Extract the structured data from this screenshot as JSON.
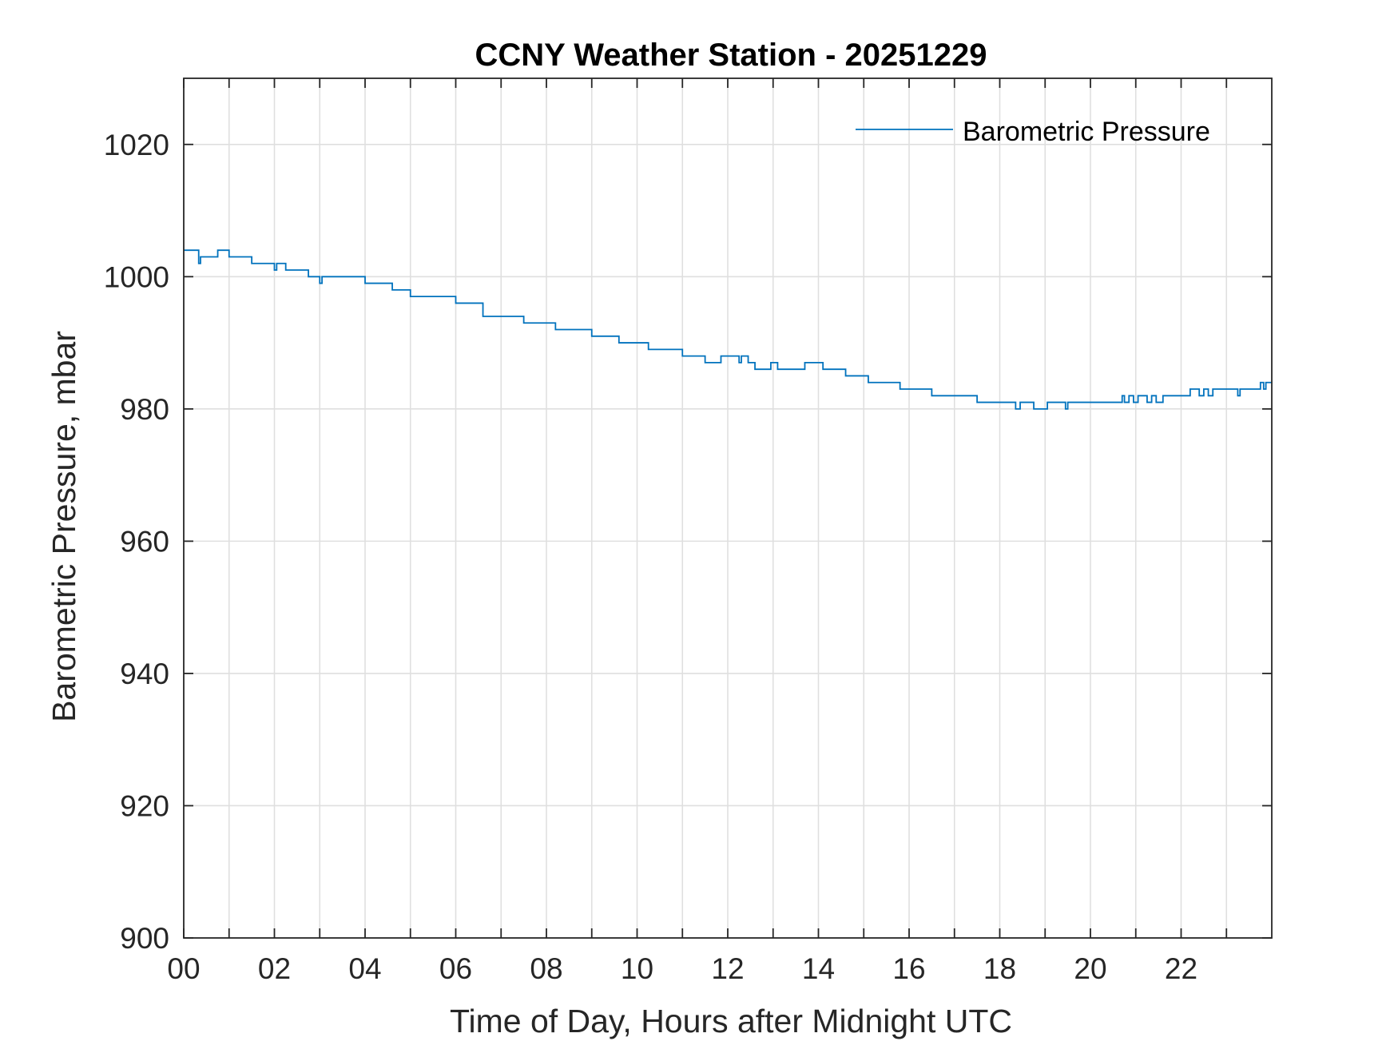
{
  "chart_data": {
    "type": "line",
    "title": "CCNY Weather Station - 20251229",
    "xlabel": "Time of Day, Hours after Midnight UTC",
    "ylabel": "Barometric Pressure, mbar",
    "xlim": [
      0,
      24
    ],
    "ylim": [
      900,
      1030
    ],
    "xticks": [
      0,
      2,
      4,
      6,
      8,
      10,
      12,
      14,
      16,
      18,
      20,
      22
    ],
    "xtick_labels": [
      "00",
      "02",
      "04",
      "06",
      "08",
      "10",
      "12",
      "14",
      "16",
      "18",
      "20",
      "22"
    ],
    "yticks": [
      900,
      920,
      940,
      960,
      980,
      1000,
      1020
    ],
    "ytick_labels": [
      "900",
      "920",
      "940",
      "960",
      "980",
      "1000",
      "1020"
    ],
    "grid": true,
    "legend_position": "top-right",
    "series": [
      {
        "name": "Barometric Pressure",
        "color": "#0072BD",
        "step": true,
        "x": [
          0,
          0.33,
          0.37,
          0.5,
          0.75,
          1.0,
          1.5,
          2.0,
          2.05,
          2.25,
          2.75,
          3.0,
          3.05,
          4.0,
          4.6,
          5.0,
          6.0,
          6.6,
          7.0,
          7.5,
          8.2,
          9.0,
          9.6,
          10.25,
          11.0,
          11.5,
          11.85,
          12.25,
          12.3,
          12.45,
          12.6,
          12.95,
          13.1,
          13.7,
          14.1,
          14.6,
          15.1,
          15.8,
          16.5,
          17.5,
          18.35,
          18.45,
          18.6,
          18.75,
          19.05,
          19.45,
          19.5,
          20.6,
          20.7,
          20.75,
          20.85,
          20.95,
          21.05,
          21.25,
          21.35,
          21.45,
          21.6,
          21.8,
          22.2,
          22.4,
          22.5,
          22.6,
          22.7,
          22.85,
          22.95,
          23.25,
          23.3,
          23.7,
          23.75,
          23.82,
          23.87,
          24.0
        ],
        "y": [
          1004,
          1002,
          1003,
          1003,
          1004,
          1003,
          1002,
          1001,
          1002,
          1001,
          1000,
          999,
          1000,
          999,
          998,
          997,
          996,
          994,
          994,
          993,
          992,
          991,
          990,
          989,
          988,
          987,
          988,
          987,
          988,
          987,
          986,
          987,
          986,
          987,
          986,
          985,
          984,
          983,
          982,
          981,
          980,
          981,
          981,
          980,
          981,
          980,
          981,
          981,
          982,
          981,
          982,
          981,
          982,
          981,
          982,
          981,
          982,
          982,
          983,
          982,
          983,
          982,
          983,
          983,
          983,
          982,
          983,
          983,
          984,
          983,
          984,
          984
        ]
      }
    ]
  }
}
